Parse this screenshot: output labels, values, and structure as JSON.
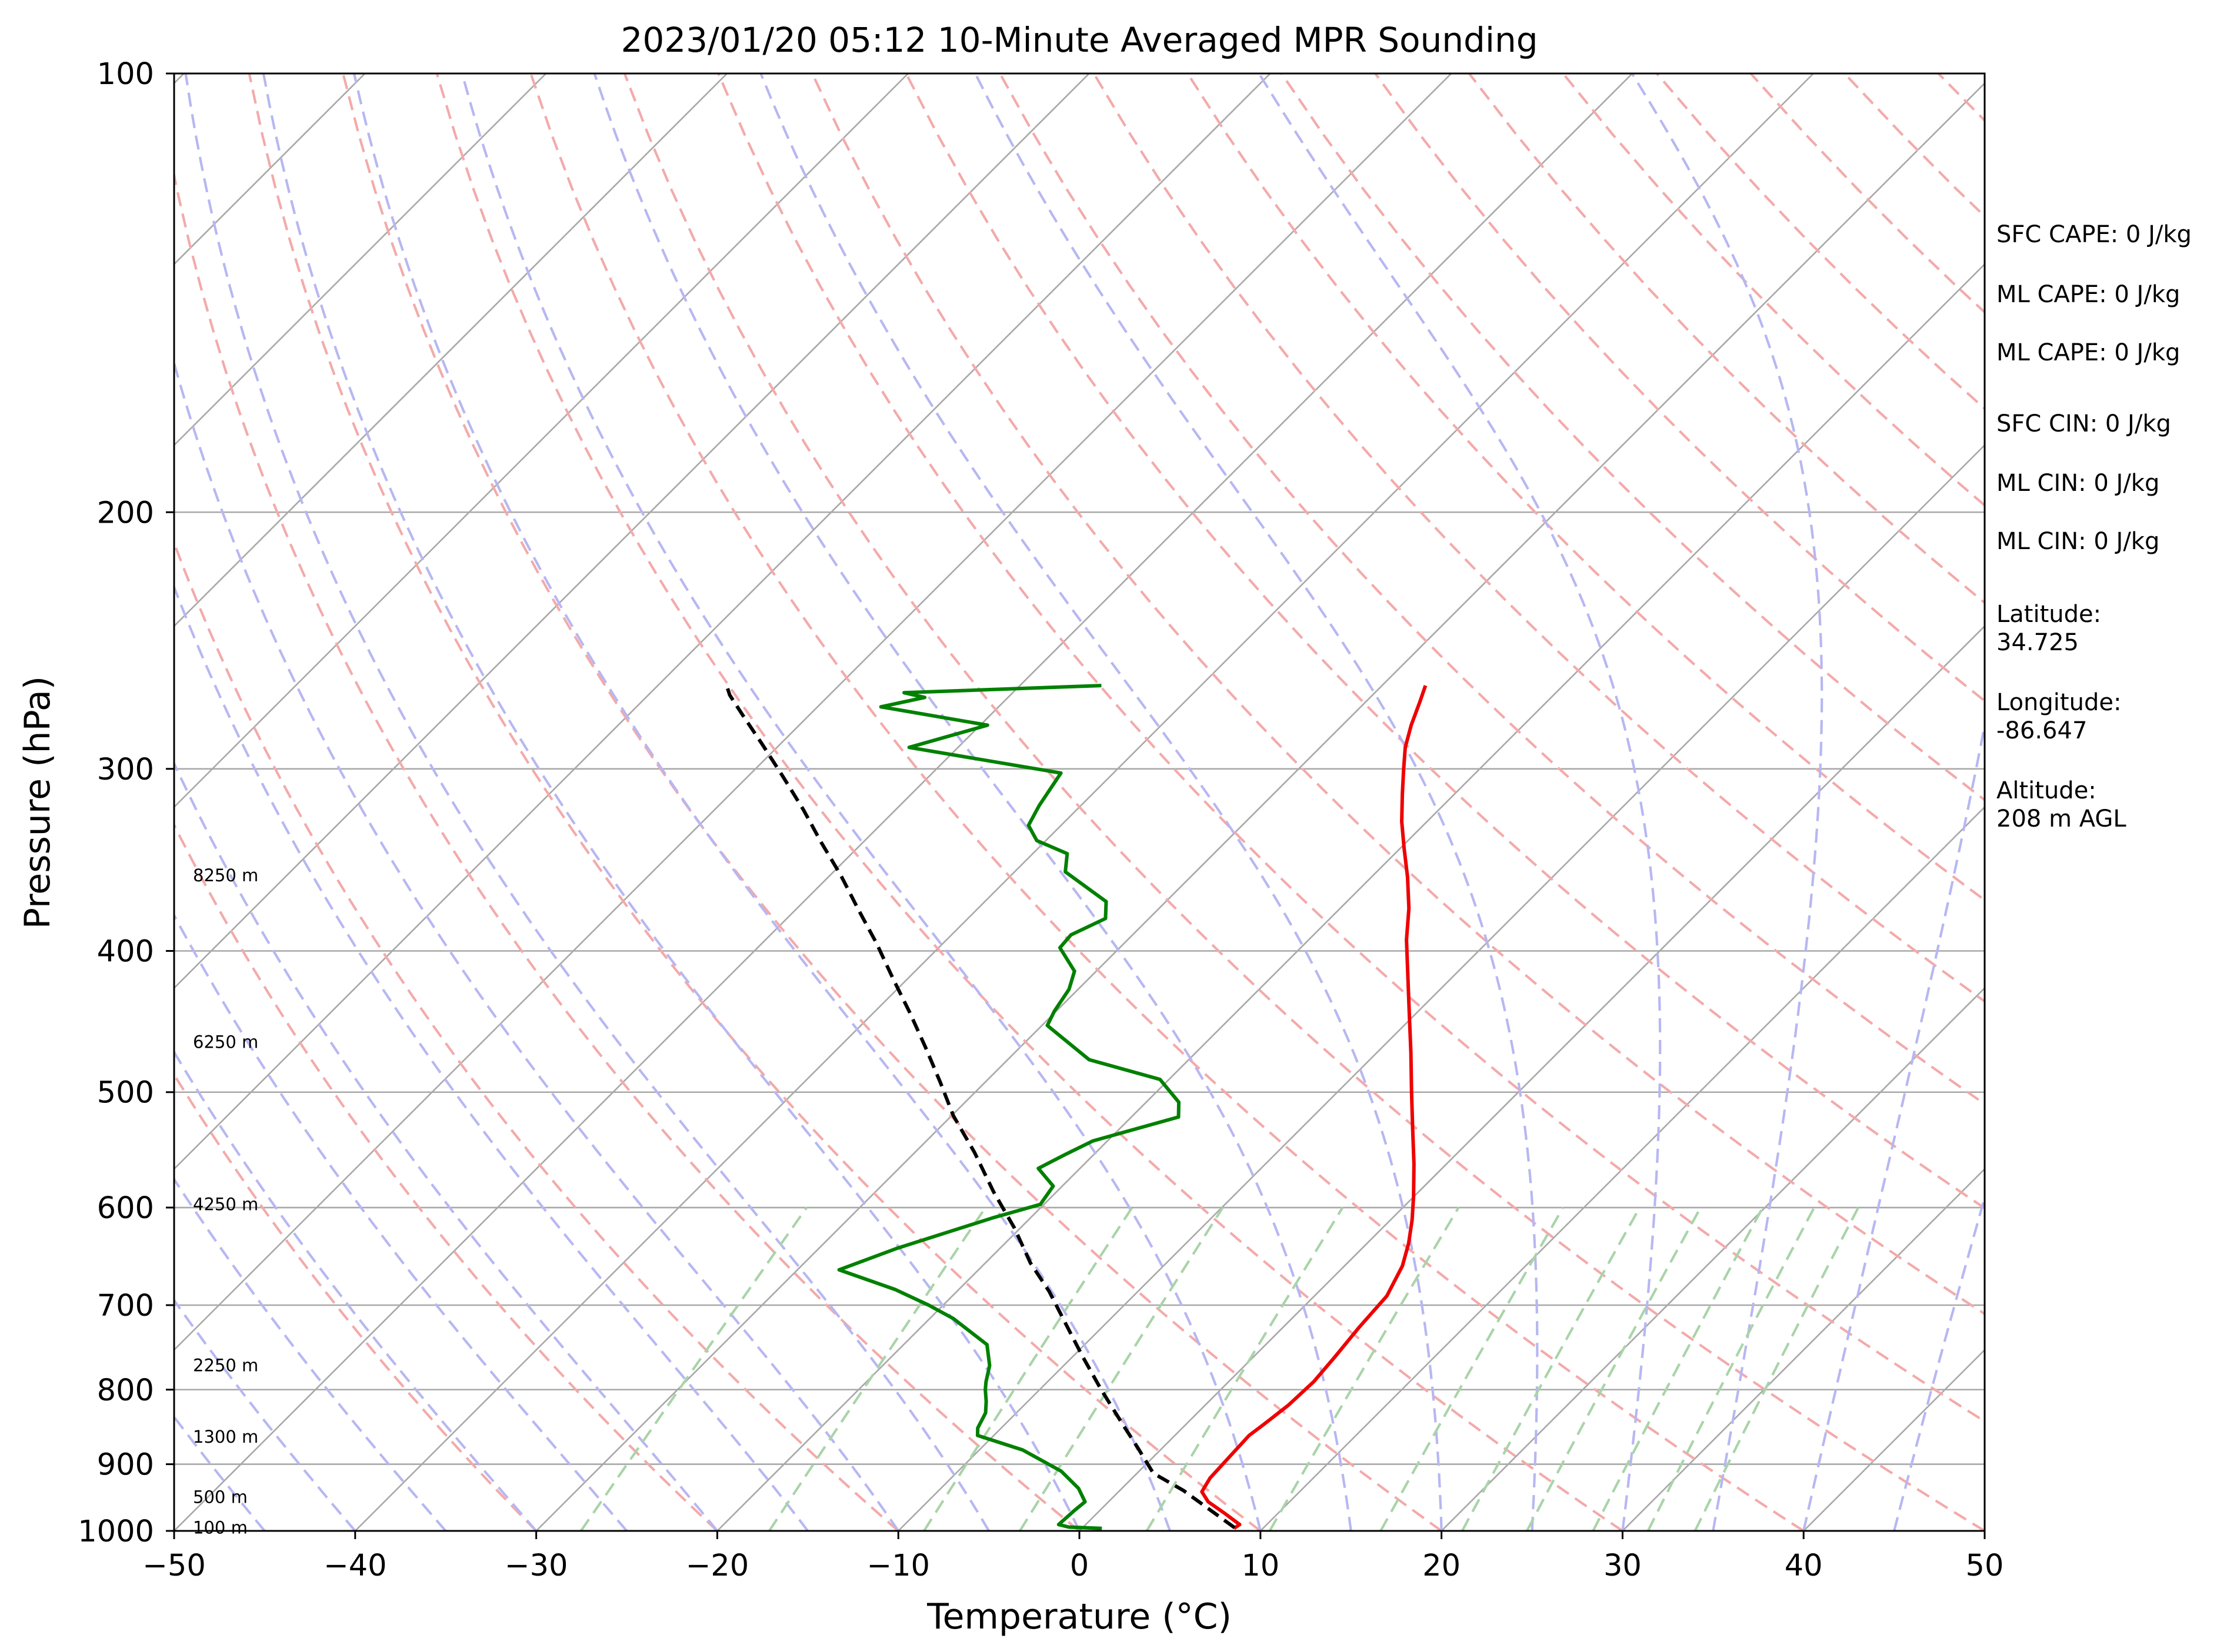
{
  "chart_data": {
    "type": "line",
    "subtype": "skew-t log-p sounding",
    "title": "2023/01/20 05:12 10-Minute Averaged MPR Sounding",
    "xlabel": "Temperature (°C)",
    "ylabel": "Pressure (hPa)",
    "xlim": [
      -50,
      50
    ],
    "ylim": [
      1000,
      100
    ],
    "y_scale": "log",
    "x_ticks": [
      "−50",
      "−40",
      "−30",
      "−20",
      "−10",
      "0",
      "10",
      "20",
      "30",
      "40",
      "50"
    ],
    "y_ticks": [
      "1000",
      "900",
      "800",
      "700",
      "600",
      "500",
      "400",
      "300",
      "200",
      "100"
    ],
    "height_labels": [
      {
        "label": "100 m",
        "p": 995
      },
      {
        "label": "500 m",
        "p": 948
      },
      {
        "label": "1300 m",
        "p": 862
      },
      {
        "label": "2250 m",
        "p": 770
      },
      {
        "label": "4250 m",
        "p": 597
      },
      {
        "label": "6250 m",
        "p": 462
      },
      {
        "label": "8250 m",
        "p": 355
      }
    ],
    "background_lines": {
      "isotherms": {
        "color": "#a8a8a8",
        "style": "solid"
      },
      "dry_adiabats": {
        "color": "#f3aaaa",
        "style": "dashed"
      },
      "moist_adiabats": {
        "color": "#b7b7f2",
        "style": "dashed"
      },
      "mixing_ratio_lines": {
        "color": "#a9d4a9",
        "style": "dashed",
        "p_top": 600
      }
    },
    "series": [
      {
        "role": "temperature",
        "color": "#ee0000",
        "style": "solid",
        "points": [
          [
            8.4,
            996
          ],
          [
            8.5,
            990
          ],
          [
            7.0,
            972
          ],
          [
            5.5,
            955
          ],
          [
            4.6,
            940
          ],
          [
            4.3,
            920
          ],
          [
            4.2,
            890
          ],
          [
            4.1,
            860
          ],
          [
            4.3,
            845
          ],
          [
            4.6,
            820
          ],
          [
            4.7,
            790
          ],
          [
            4.5,
            760
          ],
          [
            4.2,
            725
          ],
          [
            4.0,
            690
          ],
          [
            3.2,
            658
          ],
          [
            2.3,
            635
          ],
          [
            1.2,
            612
          ],
          [
            0.0,
            590
          ],
          [
            -1.8,
            560
          ],
          [
            -3.8,
            530
          ],
          [
            -5.9,
            500
          ],
          [
            -8.1,
            470
          ],
          [
            -10.5,
            440
          ],
          [
            -12.8,
            413
          ],
          [
            -14.6,
            393
          ],
          [
            -16.2,
            374
          ],
          [
            -18.0,
            356
          ],
          [
            -19.8,
            340
          ],
          [
            -21.4,
            326
          ],
          [
            -22.9,
            312
          ],
          [
            -24.2,
            300
          ],
          [
            -25.3,
            290
          ],
          [
            -26.2,
            280
          ],
          [
            -27.0,
            270
          ],
          [
            -27.6,
            263
          ]
        ]
      },
      {
        "role": "dewpoint",
        "color": "#008000",
        "style": "solid",
        "points": [
          [
            1.1,
            996
          ],
          [
            -0.8,
            994
          ],
          [
            -1.5,
            990
          ],
          [
            -1.4,
            968
          ],
          [
            -1.3,
            955
          ],
          [
            -2.4,
            935
          ],
          [
            -4.3,
            910
          ],
          [
            -7.6,
            880
          ],
          [
            -10.9,
            860
          ],
          [
            -11.3,
            850
          ],
          [
            -11.7,
            830
          ],
          [
            -12.3,
            815
          ],
          [
            -13.0,
            800
          ],
          [
            -13.4,
            790
          ],
          [
            -14.1,
            770
          ],
          [
            -15.4,
            745
          ],
          [
            -18.7,
            715
          ],
          [
            -20.8,
            700
          ],
          [
            -23.5,
            683
          ],
          [
            -27.7,
            662
          ],
          [
            -25.7,
            640
          ],
          [
            -22.1,
            610
          ],
          [
            -20.2,
            597
          ],
          [
            -20.5,
            580
          ],
          [
            -22.3,
            564
          ],
          [
            -21.6,
            552
          ],
          [
            -20.8,
            540
          ],
          [
            -17.4,
            520
          ],
          [
            -18.2,
            508
          ],
          [
            -20.5,
            490
          ],
          [
            -25.5,
            475
          ],
          [
            -29.7,
            450
          ],
          [
            -30.1,
            440
          ],
          [
            -30.5,
            425
          ],
          [
            -31.2,
            413
          ],
          [
            -33.3,
            398
          ],
          [
            -33.4,
            390
          ],
          [
            -32.4,
            380
          ],
          [
            -33.3,
            370
          ],
          [
            -37.2,
            353
          ],
          [
            -38.1,
            343
          ],
          [
            -40.5,
            336
          ],
          [
            -41.8,
            328
          ],
          [
            -42.3,
            318
          ],
          [
            -42.9,
            302
          ],
          [
            -52.7,
            290
          ],
          [
            -49.6,
            280
          ],
          [
            -56.5,
            272
          ],
          [
            -54.6,
            268
          ],
          [
            -56.0,
            266
          ],
          [
            -45.5,
            263
          ]
        ]
      },
      {
        "role": "parcel",
        "color": "#000000",
        "style": "dashed",
        "points": [
          [
            8.4,
            995
          ],
          [
            3.5,
            938
          ],
          [
            0.9,
            913
          ],
          [
            -1.3,
            878
          ],
          [
            -3.5,
            845
          ],
          [
            -6.6,
            800
          ],
          [
            -9.4,
            760
          ],
          [
            -11.9,
            725
          ],
          [
            -14.9,
            685
          ],
          [
            -17.5,
            655
          ],
          [
            -20.3,
            620
          ],
          [
            -23.5,
            585
          ],
          [
            -26.7,
            550
          ],
          [
            -29.9,
            519
          ],
          [
            -32.5,
            492
          ],
          [
            -35.2,
            466
          ],
          [
            -38.0,
            441
          ],
          [
            -40.8,
            418
          ],
          [
            -43.7,
            395
          ],
          [
            -46.5,
            375
          ],
          [
            -49.4,
            355
          ],
          [
            -52.3,
            337
          ],
          [
            -55.1,
            320
          ],
          [
            -58.0,
            304
          ],
          [
            -60.9,
            289
          ],
          [
            -63.8,
            275
          ],
          [
            -65.5,
            267
          ],
          [
            -66.2,
            263
          ]
        ]
      }
    ],
    "annotations": [
      "SFC CAPE: 0 J/kg",
      "ML CAPE: 0 J/kg",
      "ML CAPE: 0 J/kg",
      "SFC CIN: 0 J/kg",
      "ML CIN: 0 J/kg",
      "ML CIN: 0 J/kg",
      "Latitude:\n34.725",
      "Longitude:\n-86.647",
      "Altitude:\n208 m AGL"
    ]
  }
}
